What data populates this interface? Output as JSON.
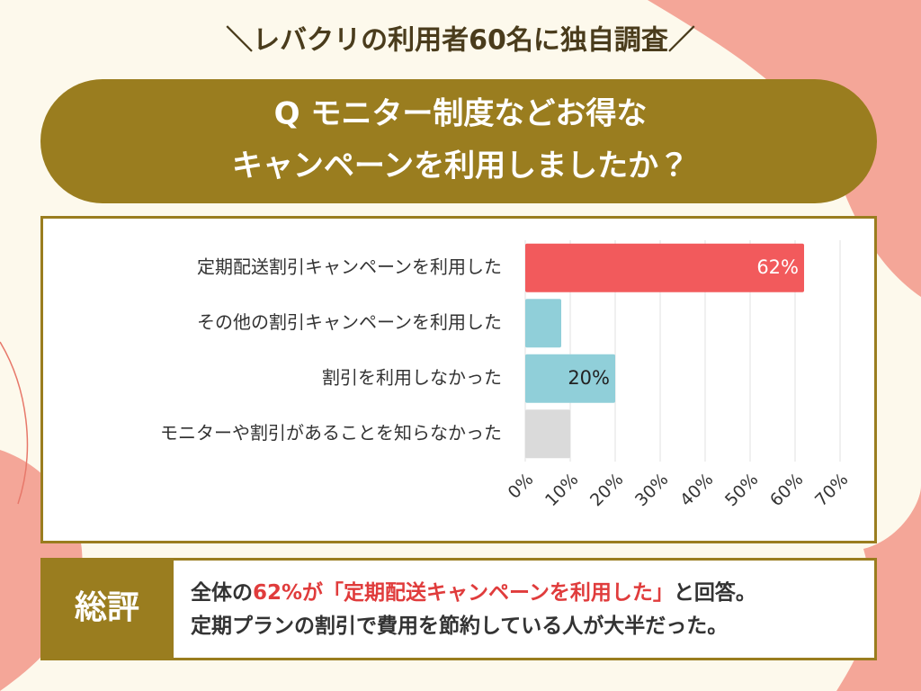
{
  "header": {
    "title": "＼レバクリの利用者60名に独自調査／"
  },
  "question": {
    "lines": [
      "Q モニター制度などお得な",
      "キャンペーンを利用しましたか？"
    ]
  },
  "chart_data": {
    "type": "barh",
    "categories": [
      "定期配送割引キャンペーンを利用した",
      "その他の割引キャンペーンを利用した",
      "割引を利用しなかった",
      "モニターや割引があることを知らなかった"
    ],
    "values": [
      62,
      8,
      20,
      10
    ],
    "value_labels": [
      "62%",
      null,
      "20%",
      null
    ],
    "colors": [
      "#f25a5c",
      "#90cfd9",
      "#90cfd9",
      "#dadada"
    ],
    "xlim": [
      0,
      70
    ],
    "xticks": [
      {
        "value": 0,
        "label": "0%"
      },
      {
        "value": 10,
        "label": "10%"
      },
      {
        "value": 20,
        "label": "20%"
      },
      {
        "value": 30,
        "label": "30%"
      },
      {
        "value": 40,
        "label": "40%"
      },
      {
        "value": 50,
        "label": "50%"
      },
      {
        "value": 60,
        "label": "60%"
      },
      {
        "value": 70,
        "label": "70%"
      }
    ],
    "grid": true
  },
  "summary": {
    "label": "総評",
    "lines": [
      [
        "全体の",
        "62%が「定期配送キャンペーンを利用した」",
        "と回答。"
      ],
      [
        "定期プランの割引で費用を節約している人が大半だった。"
      ]
    ]
  }
}
